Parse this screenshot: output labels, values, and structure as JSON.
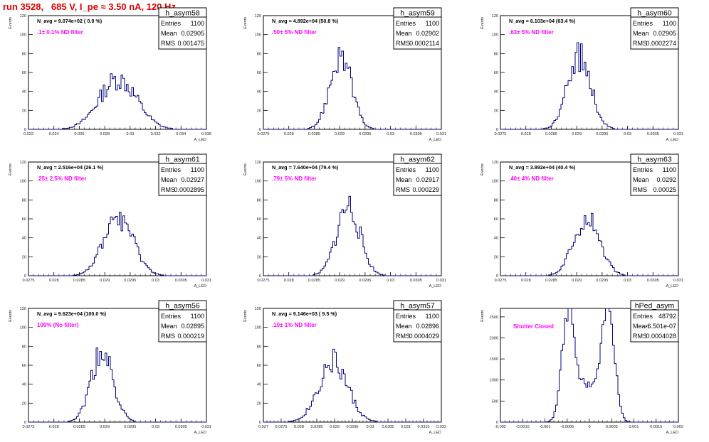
{
  "header": {
    "run_title": "run 3528,   685 V, I_pe ≈ 3.50 nA, 120 Hz"
  },
  "colors": {
    "title": "#e00000",
    "histogram": "#000080",
    "annotation": "#ff00ff",
    "axis": "#000000"
  },
  "chart_data": [
    {
      "type": "histogram",
      "title": "h_asym58",
      "stats": {
        "entries": "1100",
        "mean": "0.02905",
        "rms": "0.001475"
      },
      "navg_label": "N_avg = 9.074e+02 ( 0.9 %)",
      "filter_label": ".1± 0.1% ND filter",
      "xlabel": "A_LED",
      "ylabel": "Events",
      "xlim": [
        0.022,
        0.036
      ],
      "ylim": [
        0,
        120
      ],
      "x_ticks": [
        "0.022",
        "0.024",
        "0.026",
        "0.028",
        "0.03",
        "0.032",
        "0.034",
        "0.036"
      ],
      "y_ticks": [
        "0",
        "20",
        "40",
        "60",
        "80",
        "100",
        "120"
      ],
      "mean_value": 0.02905,
      "sigma": 0.00148,
      "peak_count": 53,
      "bins": 100,
      "shape": "gauss"
    },
    {
      "type": "histogram",
      "title": "h_asym59",
      "stats": {
        "entries": "1100",
        "mean": "0.02902",
        "rms": "0.0002114"
      },
      "navg_label": "N_avg = 4.892e+04 (50.8 %)",
      "filter_label": ".50± 5% ND filter",
      "xlabel": "A_LED",
      "ylabel": "Events",
      "xlim": [
        0.0275,
        0.031
      ],
      "ylim": [
        0,
        120
      ],
      "x_ticks": [
        "0.0275",
        "0.028",
        "0.0285",
        "0.029",
        "0.0295",
        "0.03",
        "0.0305",
        "0.031"
      ],
      "y_ticks": [
        "0",
        "20",
        "40",
        "60",
        "80",
        "100",
        "120"
      ],
      "mean_value": 0.02902,
      "sigma": 0.000211,
      "peak_count": 78,
      "bins": 100,
      "shape": "gauss"
    },
    {
      "type": "histogram",
      "title": "h_asym60",
      "stats": {
        "entries": "1100",
        "mean": "0.02905",
        "rms": "0.0002274"
      },
      "navg_label": "N_avg = 6.103e+04 (63.4 %)",
      "filter_label": ".63± 5% ND filter",
      "xlabel": "A_LED",
      "ylabel": "Events",
      "xlim": [
        0.0275,
        0.031
      ],
      "ylim": [
        0,
        120
      ],
      "x_ticks": [
        "0.0275",
        "0.028",
        "0.0285",
        "0.029",
        "0.0295",
        "0.03",
        "0.0305",
        "0.031"
      ],
      "y_ticks": [
        "0",
        "20",
        "40",
        "60",
        "80",
        "100",
        "120"
      ],
      "mean_value": 0.02905,
      "sigma": 0.000227,
      "peak_count": 78,
      "bins": 100,
      "shape": "gauss"
    },
    {
      "type": "histogram",
      "title": "h_asym61",
      "stats": {
        "entries": "1100",
        "mean": "0.02927",
        "rms": "0.0002895"
      },
      "navg_label": "N_avg = 2.516e+04 (26.1 %)",
      "filter_label": ".25± 2.5% ND filter",
      "xlabel": "A_LED",
      "ylabel": "Events",
      "xlim": [
        0.0275,
        0.031
      ],
      "ylim": [
        0,
        120
      ],
      "x_ticks": [
        "0.0275",
        "0.028",
        "0.0285",
        "0.029",
        "0.0295",
        "0.03",
        "0.0305",
        "0.031"
      ],
      "y_ticks": [
        "0",
        "20",
        "40",
        "60",
        "80",
        "100",
        "120"
      ],
      "mean_value": 0.02927,
      "sigma": 0.00029,
      "peak_count": 62,
      "bins": 100,
      "shape": "gauss"
    },
    {
      "type": "histogram",
      "title": "h_asym62",
      "stats": {
        "entries": "1100",
        "mean": "0.02917",
        "rms": "0.000229"
      },
      "navg_label": "N_avg = 7.640e+04 (79.4 %)",
      "filter_label": ".79± 5% ND filter",
      "xlabel": "A_LED",
      "ylabel": "Events",
      "xlim": [
        0.0275,
        0.031
      ],
      "ylim": [
        0,
        120
      ],
      "x_ticks": [
        "0.0275",
        "0.028",
        "0.0285",
        "0.029",
        "0.0295",
        "0.03",
        "0.0305",
        "0.031"
      ],
      "y_ticks": [
        "0",
        "20",
        "40",
        "60",
        "80",
        "100",
        "120"
      ],
      "mean_value": 0.02917,
      "sigma": 0.000229,
      "peak_count": 73,
      "bins": 100,
      "shape": "gauss"
    },
    {
      "type": "histogram",
      "title": "h_asym63",
      "stats": {
        "entries": "1100",
        "mean": "0.0292",
        "rms": "0.00025"
      },
      "navg_label": "N_avg = 3.892e+04 (40.4 %)",
      "filter_label": ".40± 4% ND filter",
      "xlabel": "A_LED",
      "ylabel": "Events",
      "xlim": [
        0.0275,
        0.031
      ],
      "ylim": [
        0,
        120
      ],
      "x_ticks": [
        "0.0275",
        "0.028",
        "0.0285",
        "0.029",
        "0.0295",
        "0.03",
        "0.0305",
        "0.031"
      ],
      "y_ticks": [
        "0",
        "20",
        "40",
        "60",
        "80",
        "100",
        "120"
      ],
      "mean_value": 0.0292,
      "sigma": 0.00025,
      "peak_count": 64,
      "bins": 100,
      "shape": "gauss"
    },
    {
      "type": "histogram",
      "title": "h_asym56",
      "stats": {
        "entries": "1100",
        "mean": "0.02895",
        "rms": "0.000219"
      },
      "navg_label": "N_avg = 9.623e+04 (100.0 %)",
      "filter_label": "100% (No filter)",
      "xlabel": "A_LED",
      "ylabel": "Events",
      "xlim": [
        0.0275,
        0.031
      ],
      "ylim": [
        0,
        120
      ],
      "x_ticks": [
        "0.0275",
        "0.028",
        "0.0285",
        "0.029",
        "0.0295",
        "0.03",
        "0.0305",
        "0.031"
      ],
      "y_ticks": [
        "0",
        "20",
        "40",
        "60",
        "80",
        "100",
        "120"
      ],
      "mean_value": 0.02895,
      "sigma": 0.000219,
      "peak_count": 72,
      "bins": 100,
      "shape": "gauss"
    },
    {
      "type": "histogram",
      "title": "h_asym57",
      "stats": {
        "entries": "1100",
        "mean": "0.02896",
        "rms": "0.0004029"
      },
      "navg_label": "N_avg = 9.146e+03 ( 9.5 %)",
      "filter_label": ".10± 1% ND filter",
      "xlabel": "A_LED",
      "ylabel": "Events",
      "xlim": [
        0.027,
        0.032
      ],
      "ylim": [
        0,
        120
      ],
      "x_ticks": [
        "0.027",
        "0.0275",
        "0.028",
        "0.0285",
        "0.029",
        "0.0295",
        "0.03",
        "0.0305",
        "0.031",
        "0.0315",
        "0.032"
      ],
      "y_ticks": [
        "0",
        "20",
        "40",
        "60",
        "80",
        "100",
        "120"
      ],
      "mean_value": 0.02896,
      "sigma": 0.000403,
      "peak_count": 64,
      "bins": 100,
      "shape": "gauss"
    },
    {
      "type": "histogram",
      "title": "hPed_asym",
      "stats": {
        "entries": "48792",
        "mean": "-6.501e-07",
        "rms": "0.0004028"
      },
      "navg_label": "",
      "filter_label": "Shutter Closed",
      "xlabel": "A_LED",
      "ylabel": "Events",
      "xlim": [
        -0.002,
        0.002
      ],
      "ylim": [
        0,
        2700
      ],
      "x_ticks": [
        "-0.002",
        "-0.0015",
        "-0.001",
        "-0.0005",
        "0",
        "0.0005",
        "0.001",
        "0.0015",
        "0.002"
      ],
      "y_ticks": [
        "0",
        "500",
        "1000",
        "1500",
        "2000",
        "2500"
      ],
      "y_tick_values": [
        0,
        500,
        1000,
        1500,
        2000,
        2500
      ],
      "peak_positions": [
        -0.0005,
        0.00045
      ],
      "peak_count": 2450,
      "valley_count": 900,
      "bins": 100,
      "shape": "double"
    }
  ]
}
